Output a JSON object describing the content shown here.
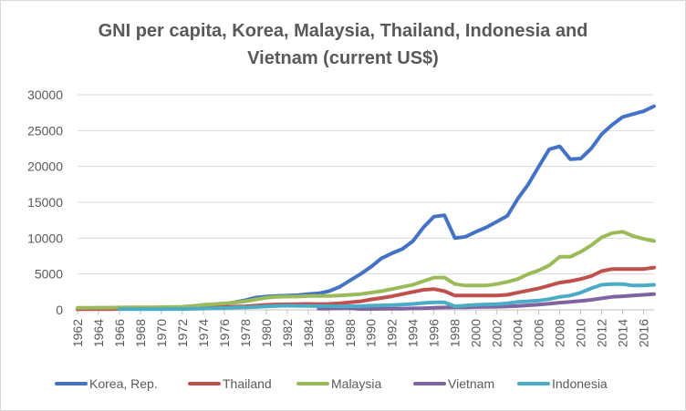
{
  "chart_data": {
    "type": "line",
    "title_lines": [
      "GNI per capita, Korea, Malaysia, Thailand,  Indonesia and",
      "Vietnam  (current US$)"
    ],
    "xlabel": "",
    "ylabel": "",
    "x": [
      1962,
      1963,
      1964,
      1965,
      1966,
      1967,
      1968,
      1969,
      1970,
      1971,
      1972,
      1973,
      1974,
      1975,
      1976,
      1977,
      1978,
      1979,
      1980,
      1981,
      1982,
      1983,
      1984,
      1985,
      1986,
      1987,
      1988,
      1989,
      1990,
      1991,
      1992,
      1993,
      1994,
      1995,
      1996,
      1997,
      1998,
      1999,
      2000,
      2001,
      2002,
      2003,
      2004,
      2005,
      2006,
      2007,
      2008,
      2009,
      2010,
      2011,
      2012,
      2013,
      2014,
      2015,
      2016,
      2017
    ],
    "x_tick_labels": [
      "1962",
      "1964",
      "1966",
      "1968",
      "1970",
      "1972",
      "1974",
      "1976",
      "1978",
      "1980",
      "1982",
      "1984",
      "1986",
      "1988",
      "1990",
      "1992",
      "1994",
      "1996",
      "1998",
      "2000",
      "2002",
      "2004",
      "2006",
      "2008",
      "2010",
      "2012",
      "2014",
      "2016"
    ],
    "y_tick_labels": [
      "0",
      "5000",
      "10000",
      "15000",
      "20000",
      "25000",
      "30000"
    ],
    "ylim": [
      0,
      30000
    ],
    "grid": true,
    "legend_position": "bottom",
    "series": [
      {
        "name": "Korea, Rep.",
        "color": "#4472c4",
        "values": [
          120,
          130,
          120,
          110,
          130,
          150,
          180,
          230,
          270,
          300,
          330,
          400,
          550,
          610,
          810,
          1050,
          1350,
          1700,
          1850,
          1950,
          1980,
          2050,
          2200,
          2300,
          2600,
          3200,
          4100,
          5000,
          6000,
          7200,
          7900,
          8500,
          9600,
          11500,
          13000,
          13200,
          10000,
          10200,
          10900,
          11500,
          12300,
          13100,
          15500,
          17500,
          20000,
          22400,
          22800,
          21000,
          21100,
          22500,
          24500,
          25800,
          26900,
          27300,
          27700,
          28400
        ]
      },
      {
        "name": "Thailand",
        "color": "#c0504d",
        "values": [
          100,
          100,
          110,
          120,
          130,
          150,
          170,
          180,
          190,
          200,
          210,
          250,
          300,
          350,
          400,
          450,
          500,
          580,
          700,
          750,
          780,
          800,
          820,
          800,
          820,
          900,
          1050,
          1200,
          1450,
          1650,
          1900,
          2200,
          2500,
          2800,
          2900,
          2600,
          2000,
          2000,
          2000,
          2000,
          2000,
          2100,
          2400,
          2700,
          3000,
          3400,
          3800,
          4000,
          4300,
          4700,
          5400,
          5700,
          5700,
          5700,
          5700,
          5900
        ]
      },
      {
        "name": "Malaysia",
        "color": "#9bbb59",
        "values": [
          280,
          290,
          300,
          310,
          330,
          340,
          350,
          360,
          380,
          400,
          430,
          550,
          700,
          800,
          900,
          1000,
          1200,
          1450,
          1700,
          1800,
          1850,
          1850,
          1950,
          1950,
          1950,
          2000,
          2100,
          2200,
          2400,
          2600,
          2900,
          3200,
          3500,
          4000,
          4500,
          4500,
          3600,
          3400,
          3400,
          3400,
          3600,
          3900,
          4300,
          5000,
          5500,
          6200,
          7400,
          7400,
          8100,
          9000,
          10100,
          10700,
          10900,
          10300,
          9900,
          9600
        ]
      },
      {
        "name": "Vietnam",
        "color": "#8064a2",
        "values": [
          null,
          null,
          null,
          null,
          null,
          null,
          null,
          null,
          null,
          null,
          null,
          null,
          null,
          null,
          null,
          null,
          null,
          null,
          null,
          null,
          null,
          null,
          null,
          150,
          180,
          200,
          220,
          110,
          130,
          140,
          150,
          170,
          200,
          230,
          280,
          330,
          350,
          360,
          390,
          410,
          430,
          480,
          550,
          640,
          740,
          850,
          1000,
          1100,
          1250,
          1400,
          1600,
          1800,
          1900,
          2000,
          2100,
          2200
        ]
      },
      {
        "name": "Indonesia",
        "color": "#4bacc6",
        "values": [
          null,
          null,
          null,
          null,
          100,
          100,
          100,
          100,
          100,
          110,
          120,
          140,
          180,
          220,
          260,
          320,
          360,
          400,
          480,
          540,
          580,
          560,
          540,
          520,
          520,
          490,
          500,
          520,
          580,
          620,
          680,
          740,
          820,
          950,
          1050,
          1050,
          500,
          600,
          700,
          750,
          800,
          900,
          1100,
          1200,
          1300,
          1500,
          1800,
          2000,
          2400,
          3000,
          3500,
          3600,
          3600,
          3400,
          3400,
          3500
        ]
      }
    ]
  }
}
